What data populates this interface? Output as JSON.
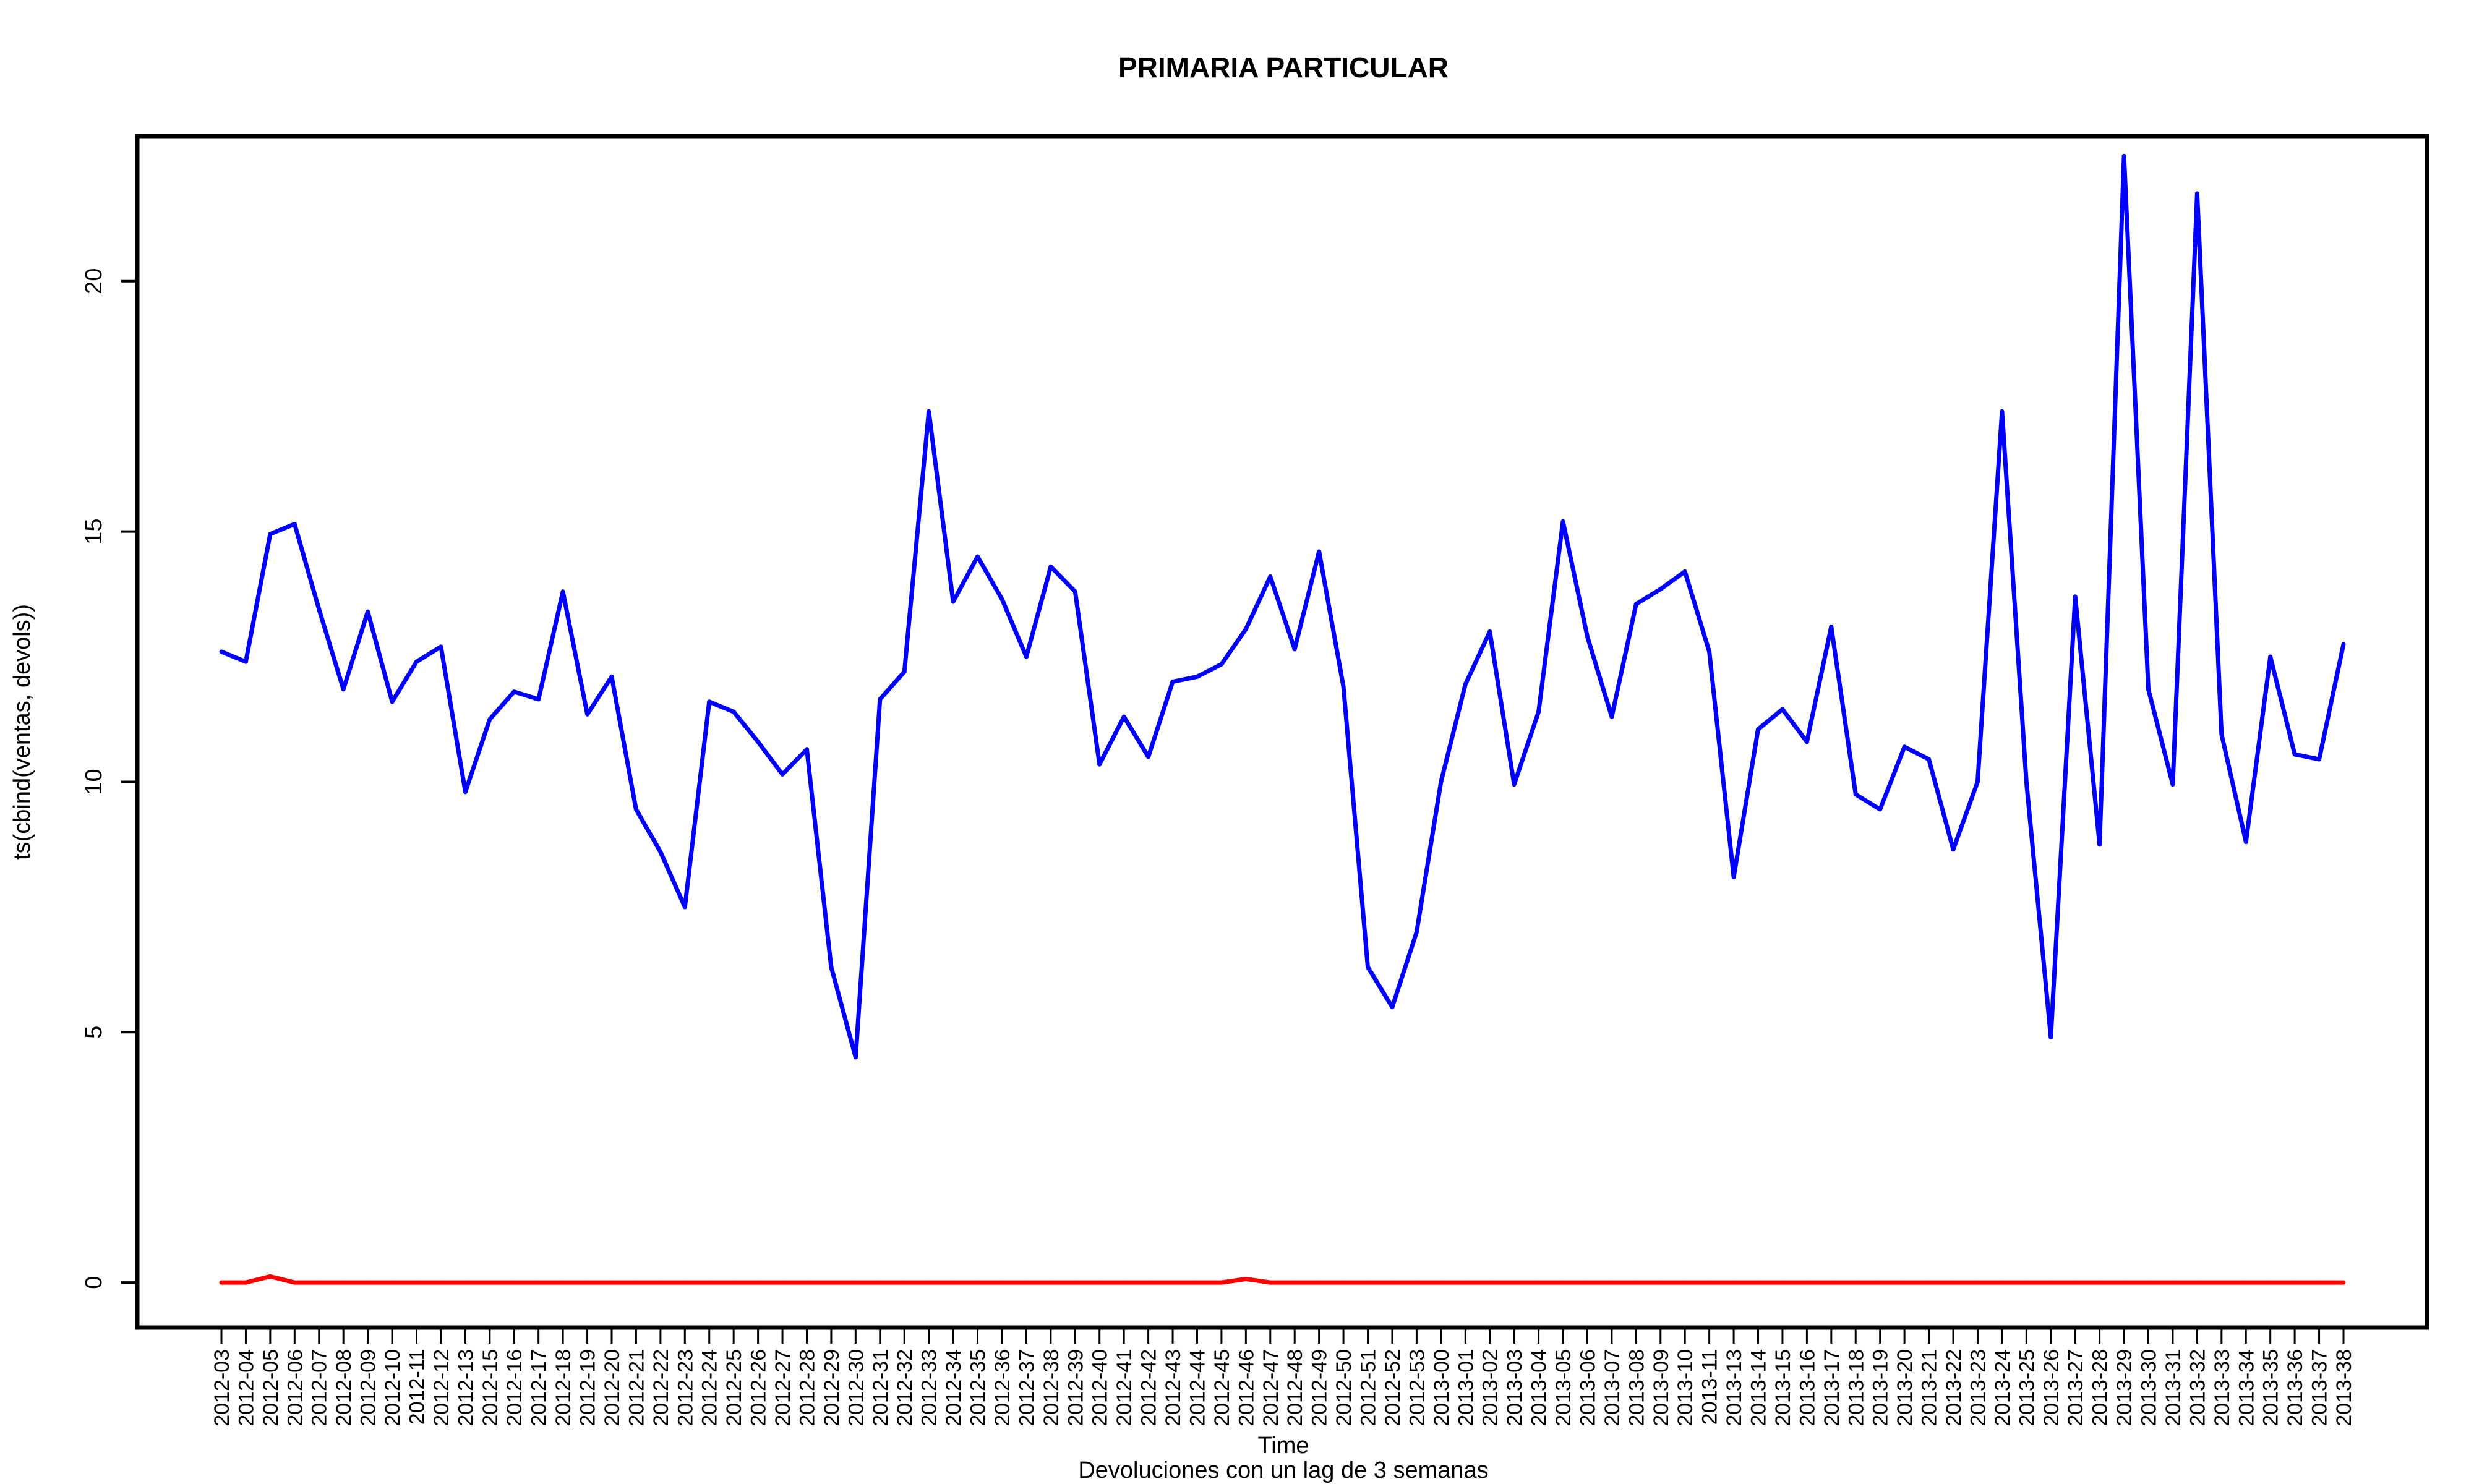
{
  "chart_data": {
    "type": "line",
    "title": "PRIMARIA PARTICULAR",
    "xlabel": "Time",
    "subtitle": "Devoluciones con un lag de 3 semanas",
    "ylabel": "ts(cbind(ventas, devols))",
    "ylim": [
      -0.9,
      22.9
    ],
    "yticks": [
      0,
      5,
      10,
      15,
      20
    ],
    "grid": false,
    "x": [
      "2012-03",
      "2012-04",
      "2012-05",
      "2012-06",
      "2012-07",
      "2012-08",
      "2012-09",
      "2012-10",
      "2012-11",
      "2012-12",
      "2012-13",
      "2012-15",
      "2012-16",
      "2012-17",
      "2012-18",
      "2012-19",
      "2012-20",
      "2012-21",
      "2012-22",
      "2012-23",
      "2012-24",
      "2012-25",
      "2012-26",
      "2012-27",
      "2012-28",
      "2012-29",
      "2012-30",
      "2012-31",
      "2012-32",
      "2012-33",
      "2012-34",
      "2012-35",
      "2012-36",
      "2012-37",
      "2012-38",
      "2012-39",
      "2012-40",
      "2012-41",
      "2012-42",
      "2012-43",
      "2012-44",
      "2012-45",
      "2012-46",
      "2012-47",
      "2012-48",
      "2012-49",
      "2012-50",
      "2012-51",
      "2012-52",
      "2012-53",
      "2013-00",
      "2013-01",
      "2013-02",
      "2013-03",
      "2013-04",
      "2013-05",
      "2013-06",
      "2013-07",
      "2013-08",
      "2013-09",
      "2013-10",
      "2013-11",
      "2013-13",
      "2013-14",
      "2013-15",
      "2013-16",
      "2013-17",
      "2013-18",
      "2013-19",
      "2013-20",
      "2013-21",
      "2013-22",
      "2013-23",
      "2013-24",
      "2013-25",
      "2013-26",
      "2013-27",
      "2013-28",
      "2013-29",
      "2013-30",
      "2013-31",
      "2013-32",
      "2013-33",
      "2013-34",
      "2013-35",
      "2013-36",
      "2013-37",
      "2013-38"
    ],
    "series": [
      {
        "color": "#0000ff",
        "values": [
          12.6,
          12.4,
          14.95,
          15.15,
          13.45,
          11.85,
          13.4,
          11.6,
          12.4,
          12.7,
          9.8,
          11.25,
          11.8,
          11.65,
          13.8,
          11.35,
          12.1,
          9.45,
          8.6,
          7.5,
          11.6,
          11.4,
          10.8,
          10.15,
          10.65,
          6.3,
          4.5,
          11.65,
          12.2,
          17.4,
          13.6,
          14.5,
          13.65,
          12.5,
          14.3,
          13.8,
          10.35,
          11.3,
          10.5,
          12.0,
          12.1,
          12.35,
          13.05,
          14.1,
          12.65,
          14.6,
          11.9,
          6.3,
          5.5,
          7.0,
          10.0,
          11.95,
          13.0,
          9.95,
          11.4,
          15.2,
          12.9,
          11.3,
          13.55,
          13.85,
          14.2,
          12.6,
          8.1,
          11.05,
          11.45,
          10.8,
          13.1,
          9.75,
          9.45,
          10.7,
          10.45,
          8.65,
          10.0,
          17.4,
          10.0,
          4.9,
          13.7,
          8.75,
          22.5,
          11.85,
          9.95,
          21.75,
          10.95,
          8.8,
          12.5,
          10.55,
          10.45,
          12.75
        ]
      },
      {
        "color": "#ff0000",
        "values": [
          0,
          0,
          0.12,
          0,
          0,
          0,
          0,
          0,
          0,
          0,
          0,
          0,
          0,
          0,
          0,
          0,
          0,
          0,
          0,
          0,
          0,
          0,
          0,
          0,
          0,
          0,
          0,
          0,
          0,
          0,
          0,
          0,
          0,
          0,
          0,
          0,
          0,
          0,
          0,
          0,
          0,
          0,
          0.07,
          0,
          0,
          0,
          0,
          0,
          0,
          0,
          0,
          0,
          0,
          0,
          0,
          0,
          0,
          0,
          0,
          0,
          0,
          0,
          0,
          0,
          0,
          0,
          0,
          0,
          0,
          0,
          0,
          0,
          0,
          0,
          0,
          0,
          0,
          0,
          0,
          0,
          0,
          0,
          0,
          0,
          0,
          0,
          0,
          0
        ]
      }
    ]
  }
}
